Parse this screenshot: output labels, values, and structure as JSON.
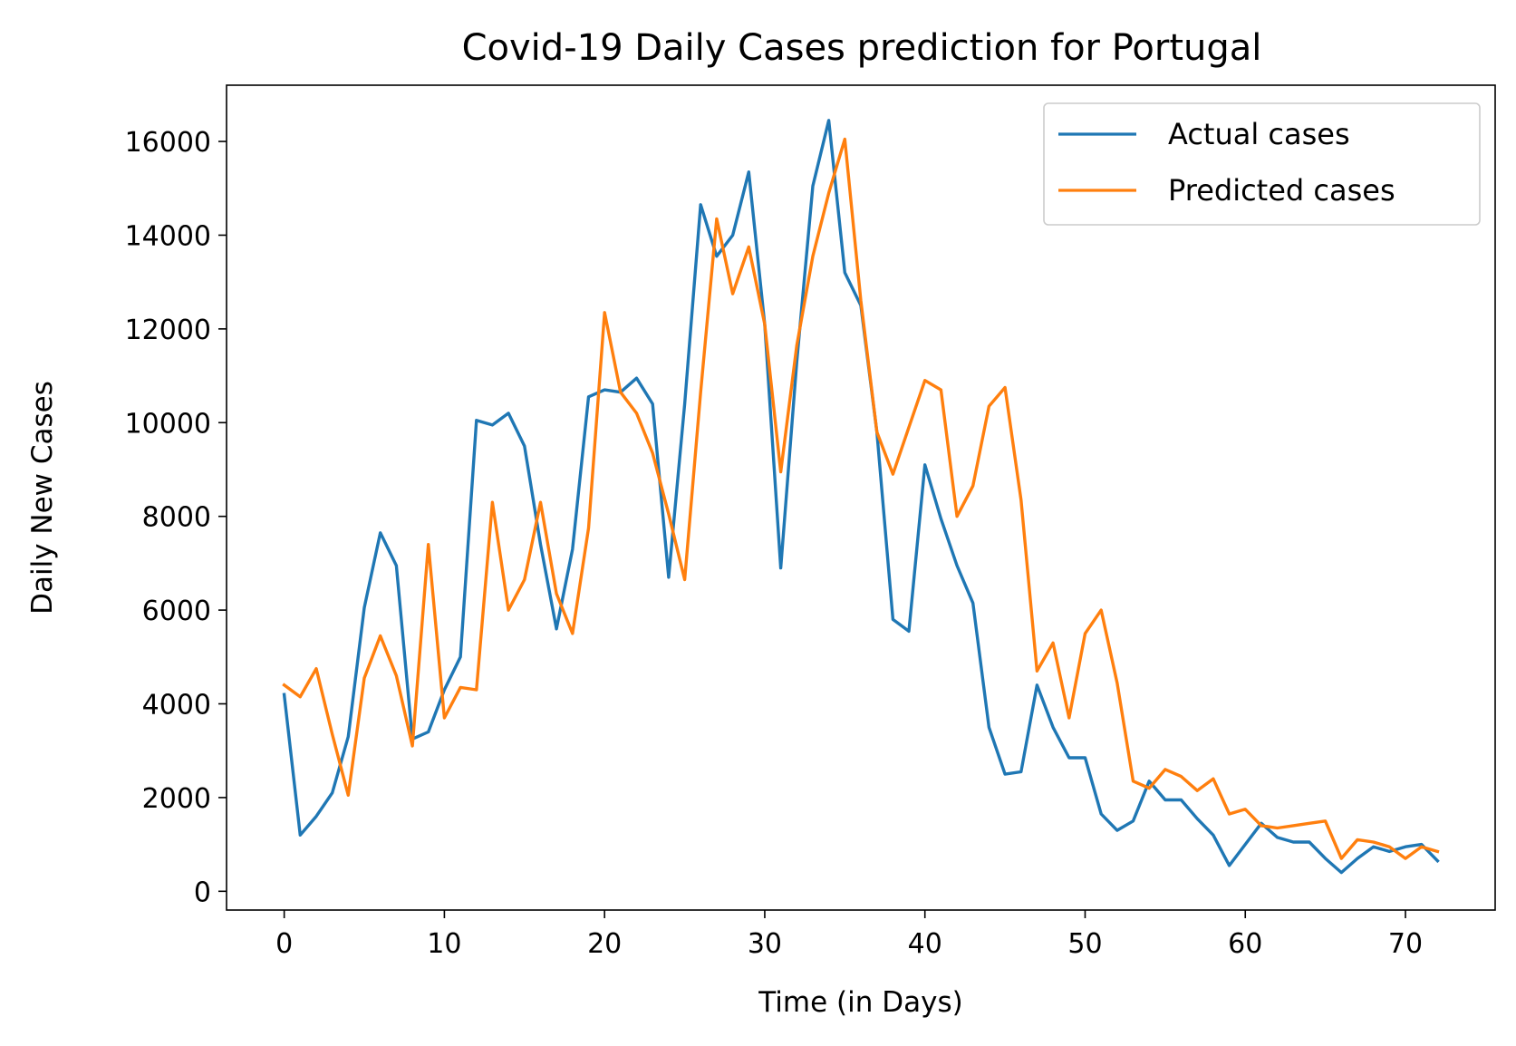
{
  "chart_data": {
    "type": "line",
    "title": "Covid-19 Daily Cases prediction for Portugal",
    "xlabel": "Time (in Days)",
    "ylabel": "Daily New Cases",
    "xlim": [
      -3.6,
      75.6
    ],
    "ylim": [
      -400,
      17200
    ],
    "xticks": [
      0,
      10,
      20,
      30,
      40,
      50,
      60,
      70
    ],
    "xtick_labels": [
      "0",
      "10",
      "20",
      "30",
      "40",
      "50",
      "60",
      "70"
    ],
    "yticks": [
      0,
      2000,
      4000,
      6000,
      8000,
      10000,
      12000,
      14000,
      16000
    ],
    "ytick_labels": [
      "0",
      "2000",
      "4000",
      "6000",
      "8000",
      "10000",
      "12000",
      "14000",
      "16000"
    ],
    "grid": false,
    "legend_position": "upper right",
    "x": [
      0,
      1,
      2,
      3,
      4,
      5,
      6,
      7,
      8,
      9,
      10,
      11,
      12,
      13,
      14,
      15,
      16,
      17,
      18,
      19,
      20,
      21,
      22,
      23,
      24,
      25,
      26,
      27,
      28,
      29,
      30,
      31,
      32,
      33,
      34,
      35,
      36,
      37,
      38,
      39,
      40,
      41,
      42,
      43,
      44,
      45,
      46,
      47,
      48,
      49,
      50,
      51,
      52,
      53,
      54,
      55,
      56,
      57,
      58,
      59,
      60,
      61,
      62,
      63,
      64,
      65,
      66,
      67,
      68,
      69,
      70,
      71,
      72
    ],
    "series": [
      {
        "name": "Actual cases",
        "color": "#1f77b4",
        "values": [
          4200,
          1200,
          1600,
          2100,
          3300,
          6050,
          7650,
          6950,
          3250,
          3400,
          4300,
          5000,
          10050,
          9950,
          10200,
          9500,
          7400,
          5600,
          7300,
          10550,
          10700,
          10650,
          10950,
          10400,
          6700,
          10400,
          14650,
          13550,
          14000,
          15350,
          12100,
          6900,
          11300,
          15050,
          16450,
          13200,
          12500,
          9800,
          5800,
          5550,
          9100,
          7950,
          6950,
          6150,
          3500,
          2500,
          2550,
          4400,
          3500,
          2850,
          2850,
          1650,
          1300,
          1500,
          2350,
          1950,
          1950,
          1550,
          1200,
          550,
          1000,
          1450,
          1150,
          1050,
          1050,
          700,
          400,
          700,
          950,
          850,
          950,
          1000,
          650
        ]
      },
      {
        "name": "Predicted cases",
        "color": "#ff7f0e",
        "values": [
          4400,
          4150,
          4750,
          3350,
          2050,
          4550,
          5450,
          4600,
          3100,
          7400,
          3700,
          4350,
          4300,
          8300,
          6000,
          6650,
          8300,
          6350,
          5500,
          7750,
          12350,
          10650,
          10200,
          9350,
          8050,
          6650,
          10650,
          14350,
          12750,
          13750,
          12100,
          8950,
          11650,
          13550,
          14900,
          16050,
          12600,
          9800,
          8900,
          9900,
          10900,
          10700,
          8000,
          8650,
          10350,
          10750,
          8350,
          4700,
          5300,
          3700,
          5500,
          6000,
          4450,
          2350,
          2200,
          2600,
          2450,
          2150,
          2400,
          1650,
          1750,
          1400,
          1350,
          1400,
          1450,
          1500,
          700,
          1100,
          1050,
          950,
          700,
          950,
          850
        ]
      }
    ]
  }
}
